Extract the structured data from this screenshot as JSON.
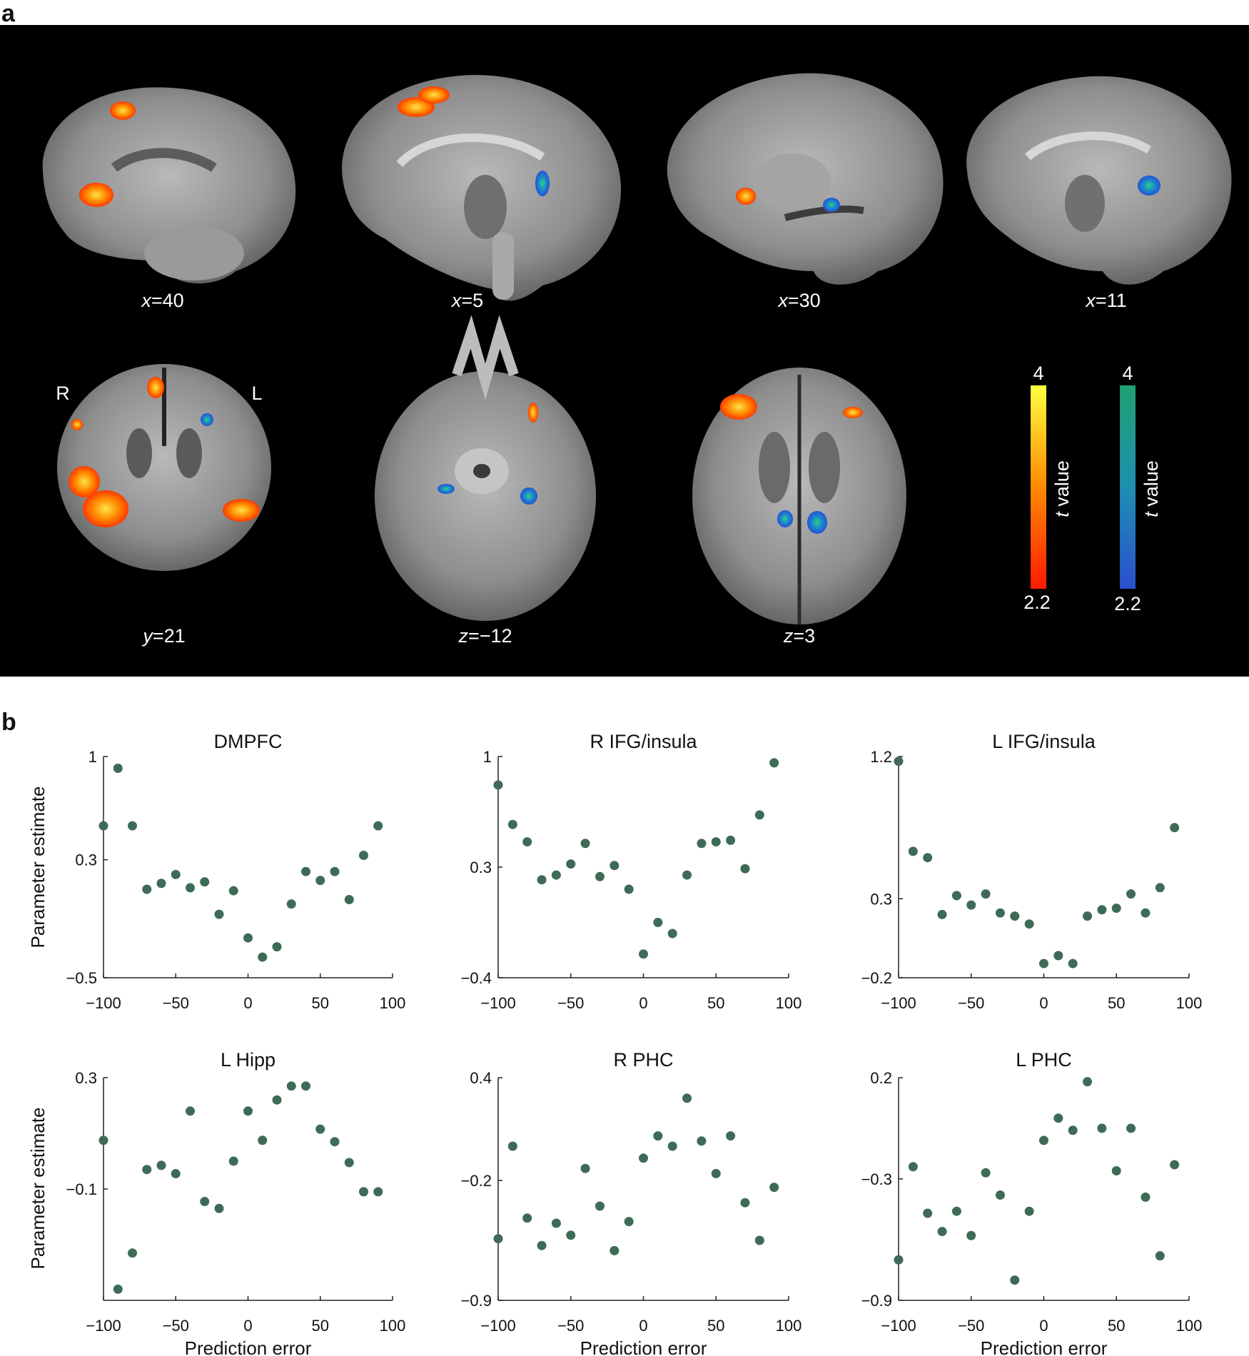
{
  "panel_a": {
    "letter": "a",
    "slices": [
      {
        "label_var": "x",
        "label_val": "=40"
      },
      {
        "label_var": "x",
        "label_val": "=5"
      },
      {
        "label_var": "x",
        "label_val": "=30"
      },
      {
        "label_var": "x",
        "label_val": "=11"
      },
      {
        "label_var": "y",
        "label_val": "=21"
      },
      {
        "label_var": "z",
        "label_val": "=−12"
      },
      {
        "label_var": "z",
        "label_val": "=3"
      }
    ],
    "hemisphere_right": "R",
    "hemisphere_left": "L",
    "colorbars": [
      {
        "max": "4",
        "min": "2.2",
        "label_t": "t",
        "label_rest": " value",
        "colors": [
          "#ff1a00",
          "#ff8a00",
          "#ffff40"
        ]
      },
      {
        "max": "4",
        "min": "2.2",
        "label_t": "t",
        "label_rest": " value",
        "colors": [
          "#2a4fd0",
          "#1f8fb0",
          "#1fa070"
        ]
      }
    ]
  },
  "panel_b": {
    "letter": "b",
    "ylabel": "Parameter estimate",
    "xlabel": "Prediction error",
    "point_color": "#3e6b56"
  },
  "chart_data": [
    {
      "type": "scatter",
      "title": "DMPFC",
      "ylabel": "Parameter estimate",
      "xlabel": "",
      "xlim": [
        -100,
        100
      ],
      "ylim": [
        -0.5,
        1
      ],
      "xticks": [
        "−100",
        "−50",
        "0",
        "50",
        "100"
      ],
      "xtick_vals": [
        -100,
        -50,
        0,
        50,
        100
      ],
      "yticks": [
        "−0.5",
        "0.3",
        "1"
      ],
      "ytick_vals": [
        -0.5,
        0.3,
        1
      ],
      "x": [
        -100,
        -90,
        -80,
        -70,
        -60,
        -50,
        -40,
        -30,
        -20,
        -10,
        0,
        10,
        20,
        30,
        40,
        50,
        60,
        70,
        80,
        90
      ],
      "y": [
        0.53,
        0.92,
        0.53,
        0.1,
        0.14,
        0.2,
        0.11,
        0.15,
        -0.07,
        0.09,
        -0.23,
        -0.36,
        -0.29,
        0.0,
        0.22,
        0.16,
        0.22,
        0.03,
        0.33,
        0.53
      ]
    },
    {
      "type": "scatter",
      "title": "R IFG/insula",
      "ylabel": "",
      "xlabel": "",
      "xlim": [
        -100,
        100
      ],
      "ylim": [
        -0.4,
        1
      ],
      "xticks": [
        "−100",
        "−50",
        "0",
        "50",
        "100"
      ],
      "xtick_vals": [
        -100,
        -50,
        0,
        50,
        100
      ],
      "yticks": [
        "−0.4",
        "0.3",
        "1"
      ],
      "ytick_vals": [
        -0.4,
        0.3,
        1
      ],
      "x": [
        -100,
        -90,
        -80,
        -70,
        -60,
        -50,
        -40,
        -30,
        -20,
        -10,
        0,
        10,
        20,
        30,
        40,
        50,
        60,
        70,
        80,
        90
      ],
      "y": [
        0.82,
        0.57,
        0.46,
        0.22,
        0.25,
        0.32,
        0.45,
        0.24,
        0.31,
        0.16,
        -0.25,
        -0.05,
        -0.12,
        0.25,
        0.45,
        0.46,
        0.47,
        0.29,
        0.63,
        0.96
      ]
    },
    {
      "type": "scatter",
      "title": "L IFG/insula",
      "ylabel": "",
      "xlabel": "",
      "xlim": [
        -100,
        100
      ],
      "ylim": [
        -0.2,
        1.2
      ],
      "xticks": [
        "−100",
        "−50",
        "0",
        "50",
        "100"
      ],
      "xtick_vals": [
        -100,
        -50,
        0,
        50,
        100
      ],
      "yticks": [
        "−0.2",
        "0.3",
        "1.2"
      ],
      "ytick_vals": [
        -0.2,
        0.3,
        1.2
      ],
      "x": [
        -100,
        -90,
        -80,
        -70,
        -60,
        -50,
        -40,
        -30,
        -20,
        -10,
        0,
        10,
        20,
        30,
        40,
        50,
        60,
        70,
        80,
        90
      ],
      "y": [
        1.17,
        0.6,
        0.56,
        0.2,
        0.32,
        0.26,
        0.33,
        0.21,
        0.19,
        0.14,
        -0.11,
        -0.06,
        -0.11,
        0.19,
        0.23,
        0.24,
        0.33,
        0.21,
        0.37,
        0.75
      ]
    },
    {
      "type": "scatter",
      "title": "L Hipp",
      "ylabel": "Parameter estimate",
      "xlabel": "Prediction error",
      "xlim": [
        -100,
        100
      ],
      "ylim": [
        -0.5,
        0.3
      ],
      "xticks": [
        "−100",
        "−50",
        "0",
        "50",
        "100"
      ],
      "xtick_vals": [
        -100,
        -50,
        0,
        50,
        100
      ],
      "yticks": [
        "−0.1",
        "0.3"
      ],
      "ytick_vals": [
        -0.1,
        0.3
      ],
      "x": [
        -100,
        -90,
        -80,
        -70,
        -60,
        -50,
        -40,
        -30,
        -20,
        -10,
        0,
        10,
        20,
        30,
        40,
        50,
        60,
        70,
        80,
        90
      ],
      "y": [
        0.075,
        -0.46,
        -0.33,
        -0.03,
        -0.015,
        -0.045,
        0.18,
        -0.145,
        -0.17,
        0.0,
        0.18,
        0.075,
        0.22,
        0.27,
        0.27,
        0.115,
        0.07,
        -0.005,
        -0.11,
        -0.11
      ]
    },
    {
      "type": "scatter",
      "title": "R PHC",
      "ylabel": "",
      "xlabel": "Prediction error",
      "xlim": [
        -100,
        100
      ],
      "ylim": [
        -0.9,
        0.4
      ],
      "xticks": [
        "−100",
        "−50",
        "0",
        "50",
        "100"
      ],
      "xtick_vals": [
        -100,
        -50,
        0,
        50,
        100
      ],
      "yticks": [
        "−0.9",
        "−0.2",
        "0.4"
      ],
      "ytick_vals": [
        -0.9,
        -0.2,
        0.4
      ],
      "x": [
        -100,
        -90,
        -80,
        -70,
        -60,
        -50,
        -40,
        -30,
        -20,
        -10,
        0,
        10,
        20,
        30,
        40,
        50,
        60,
        70,
        80,
        90
      ],
      "y": [
        -0.54,
        0.0,
        -0.42,
        -0.58,
        -0.45,
        -0.52,
        -0.13,
        -0.35,
        -0.61,
        -0.44,
        -0.07,
        0.06,
        0.0,
        0.28,
        0.03,
        -0.16,
        0.06,
        -0.33,
        -0.55,
        -0.24
      ]
    },
    {
      "type": "scatter",
      "title": "L PHC",
      "ylabel": "",
      "xlabel": "Prediction error",
      "xlim": [
        -100,
        100
      ],
      "ylim": [
        -0.9,
        0.2
      ],
      "xticks": [
        "−100",
        "−50",
        "0",
        "50",
        "100"
      ],
      "xtick_vals": [
        -100,
        -50,
        0,
        50,
        100
      ],
      "yticks": [
        "−0.9",
        "−0.3",
        "0.2"
      ],
      "ytick_vals": [
        -0.9,
        -0.3,
        0.2
      ],
      "x": [
        -100,
        -90,
        -80,
        -70,
        -60,
        -50,
        -40,
        -30,
        -20,
        -10,
        0,
        10,
        20,
        30,
        40,
        50,
        60,
        70,
        80,
        90
      ],
      "y": [
        -0.7,
        -0.24,
        -0.47,
        -0.56,
        -0.46,
        -0.58,
        -0.27,
        -0.38,
        -0.8,
        -0.46,
        -0.11,
        0.0,
        -0.06,
        0.18,
        -0.05,
        -0.26,
        -0.05,
        -0.39,
        -0.68,
        -0.23
      ]
    }
  ]
}
